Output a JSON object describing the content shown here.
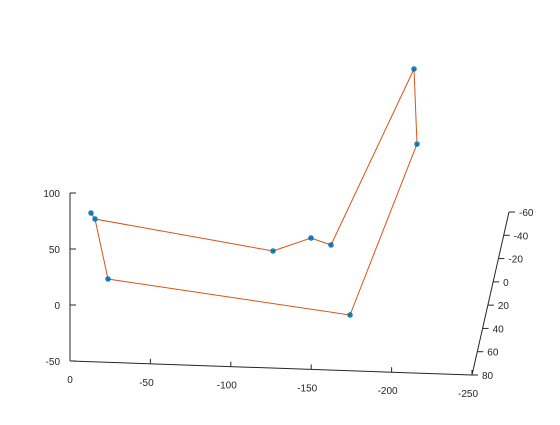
{
  "chart_data": {
    "type": "line3d",
    "title": "",
    "xlabel": "",
    "ylabel": "",
    "zlabel": "",
    "grid": false,
    "line_color": "#D95319",
    "marker_color": "#0072BD",
    "marker": "*",
    "x_ticks": [
      "0",
      "-50",
      "-100",
      "-150",
      "-200",
      "-250"
    ],
    "y_ticks": [
      "-60",
      "-40",
      "-20",
      "0",
      "20",
      "40",
      "60",
      "80"
    ],
    "z_ticks": [
      "100",
      "50",
      "0",
      "-50"
    ],
    "xlim": [
      0,
      -250
    ],
    "ylim": [
      -60,
      80
    ],
    "zlim": [
      -50,
      100
    ],
    "points": [
      {
        "x": -12,
        "y": 3,
        "z": 80
      },
      {
        "x": -13,
        "y": 4,
        "z": 74
      },
      {
        "x": -125,
        "y": 6,
        "z": 49
      },
      {
        "x": -148,
        "y": 4,
        "z": 61
      },
      {
        "x": -160,
        "y": 4,
        "z": 55
      },
      {
        "x": -207,
        "y": -7,
        "z": 118
      },
      {
        "x": -213,
        "y": -12,
        "z": 146
      },
      {
        "x": -209,
        "y": 3,
        "z": 150
      },
      {
        "x": -175,
        "y": 8,
        "z": -9
      },
      {
        "x": -23,
        "y": 5,
        "z": 23
      },
      {
        "x": -12,
        "y": 3,
        "z": 80
      }
    ]
  }
}
